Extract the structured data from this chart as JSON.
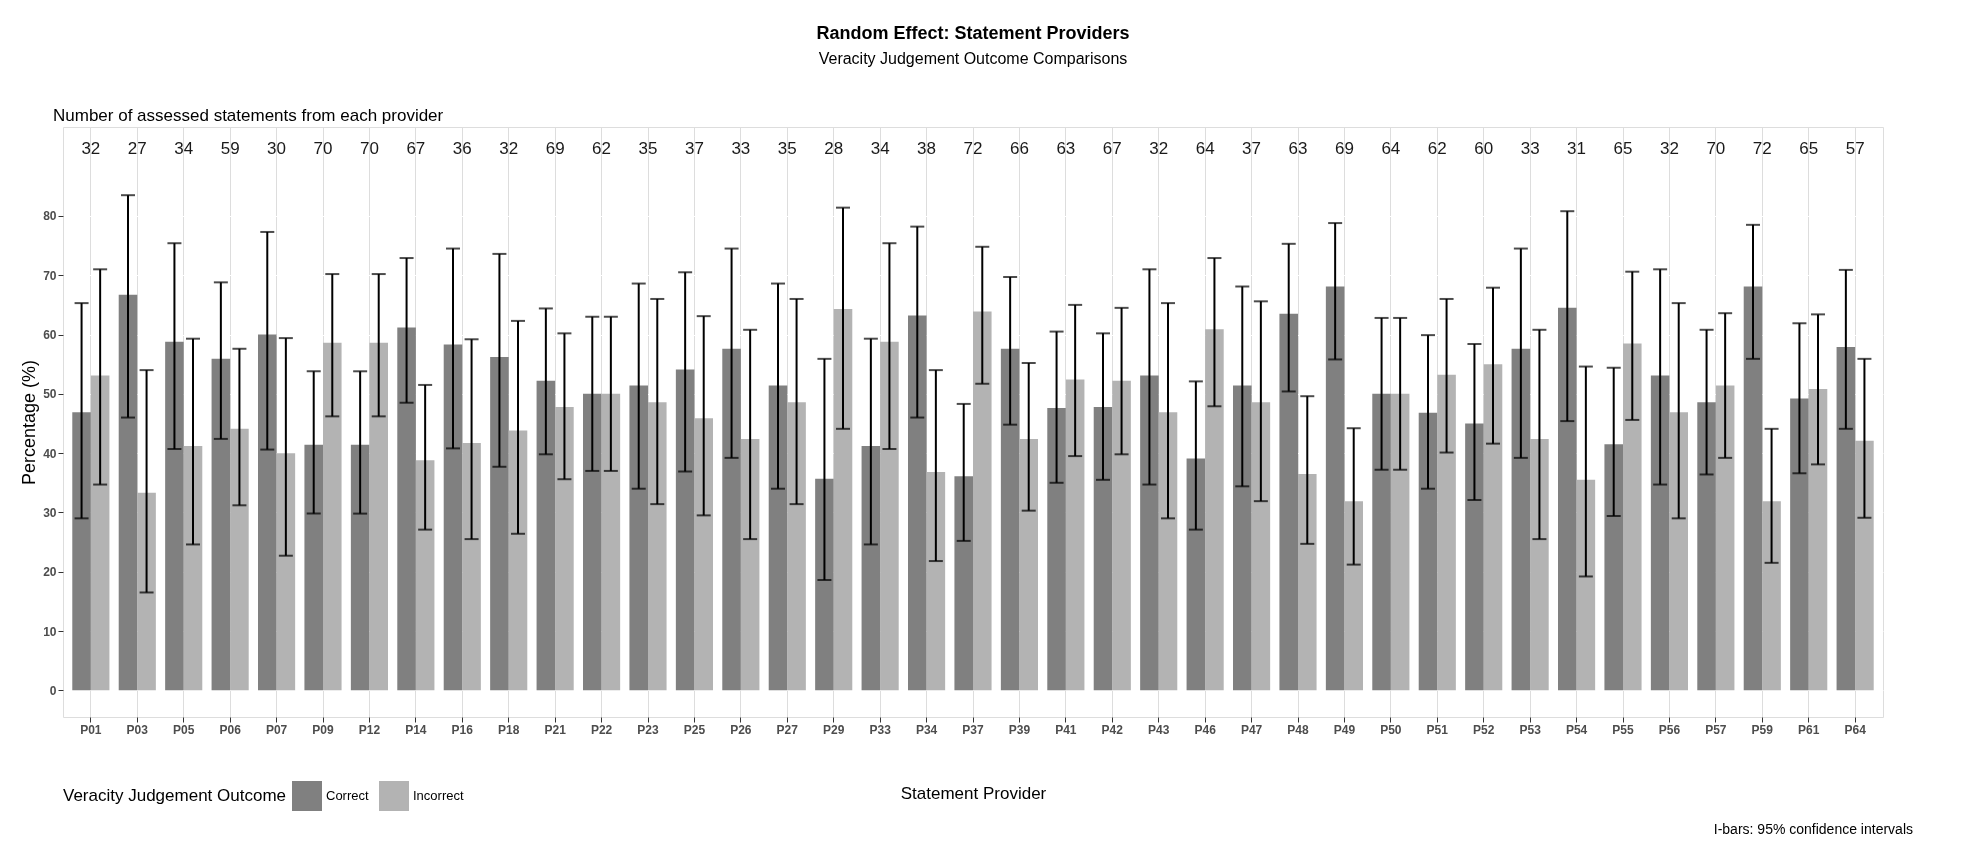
{
  "chart_data": {
    "type": "bar",
    "title": "Random Effect: Statement Providers",
    "subtitle": "Veracity Judgement Outcome Comparisons",
    "xlabel": "Statement Provider",
    "ylabel": "Percentage (%)",
    "legend_title": "Veracity Judgement Outcome",
    "legend": "bottom left",
    "grid": true,
    "categories": [
      "P01",
      "P03",
      "P05",
      "P06",
      "P07",
      "P09",
      "P12",
      "P14",
      "P16",
      "P18",
      "P21",
      "P22",
      "P23",
      "P25",
      "P26",
      "P27",
      "P29",
      "P33",
      "P34",
      "P37",
      "P39",
      "P41",
      "P42",
      "P43",
      "P46",
      "P47",
      "P48",
      "P49",
      "P50",
      "P51",
      "P52",
      "P53",
      "P54",
      "P55",
      "P56",
      "P57",
      "P59",
      "P61",
      "P64"
    ],
    "ylim": [
      -4.5,
      95
    ],
    "yticks": [
      0,
      10,
      20,
      30,
      40,
      50,
      60,
      70,
      80
    ],
    "series": [
      {
        "name": "Correct",
        "color": "#808080",
        "values": [
          46.9,
          66.7,
          58.8,
          55.9,
          60,
          41.4,
          41.4,
          61.2,
          58.3,
          56.2,
          52.2,
          50,
          51.4,
          54.1,
          57.6,
          51.4,
          35.7,
          41.2,
          63.2,
          36.1,
          57.6,
          47.6,
          47.8,
          53.1,
          39.1,
          51.4,
          63.5,
          68.1,
          50,
          46.8,
          45,
          57.6,
          64.5,
          41.5,
          53.1,
          48.6,
          68.1,
          49.2,
          57.9
        ],
        "errors": [
          [
            29,
            65.3
          ],
          [
            46,
            83.5
          ],
          [
            40.7,
            75.4
          ],
          [
            42.4,
            68.8
          ],
          [
            40.6,
            77.3
          ],
          [
            29.8,
            53.8
          ],
          [
            29.8,
            53.8
          ],
          [
            48.5,
            72.9
          ],
          [
            40.8,
            74.5
          ],
          [
            37.7,
            73.6
          ],
          [
            39.8,
            64.4
          ],
          [
            37,
            63
          ],
          [
            34,
            68.6
          ],
          [
            36.9,
            70.5
          ],
          [
            39.2,
            74.5
          ],
          [
            34,
            68.6
          ],
          [
            18.6,
            55.9
          ],
          [
            24.6,
            59.3
          ],
          [
            46,
            78.2
          ],
          [
            25.2,
            48.3
          ],
          [
            44.8,
            69.7
          ],
          [
            35,
            60.5
          ],
          [
            35.5,
            60.2
          ],
          [
            34.7,
            71
          ],
          [
            27.1,
            52.1
          ],
          [
            34.4,
            68.1
          ],
          [
            50.4,
            75.3
          ],
          [
            55.8,
            78.8
          ],
          [
            37.2,
            62.8
          ],
          [
            34,
            59.9
          ],
          [
            32.1,
            58.4
          ],
          [
            39.2,
            74.5
          ],
          [
            45.4,
            80.8
          ],
          [
            29.4,
            54.4
          ],
          [
            34.7,
            71
          ],
          [
            36.4,
            60.8
          ],
          [
            55.9,
            78.5
          ],
          [
            36.6,
            61.9
          ],
          [
            44.1,
            70.9
          ]
        ]
      },
      {
        "name": "Incorrect",
        "color": "#b3b3b3",
        "values": [
          53.1,
          33.3,
          41.2,
          44.1,
          40,
          58.6,
          58.6,
          38.8,
          41.7,
          43.8,
          47.8,
          50,
          48.6,
          45.9,
          42.4,
          48.6,
          64.3,
          58.8,
          36.8,
          63.9,
          42.4,
          52.4,
          52.2,
          46.9,
          60.9,
          48.6,
          36.5,
          31.9,
          50,
          53.2,
          55,
          42.4,
          35.5,
          58.5,
          46.9,
          51.4,
          31.9,
          50.8,
          42.1
        ],
        "errors": [
          [
            34.7,
            71
          ],
          [
            16.5,
            54
          ],
          [
            24.6,
            59.3
          ],
          [
            31.2,
            57.6
          ],
          [
            22.7,
            59.4
          ],
          [
            46.2,
            70.2
          ],
          [
            46.2,
            70.2
          ],
          [
            27.1,
            51.5
          ],
          [
            25.5,
            59.2
          ],
          [
            26.4,
            62.3
          ],
          [
            35.6,
            60.2
          ],
          [
            37,
            63
          ],
          [
            31.4,
            66
          ],
          [
            29.5,
            63.1
          ],
          [
            25.5,
            60.8
          ],
          [
            31.4,
            66
          ],
          [
            44.1,
            81.4
          ],
          [
            40.7,
            75.4
          ],
          [
            21.8,
            54
          ],
          [
            51.7,
            74.8
          ],
          [
            30.3,
            55.2
          ],
          [
            39.5,
            65
          ],
          [
            39.8,
            64.5
          ],
          [
            29,
            65.3
          ],
          [
            47.9,
            72.9
          ],
          [
            31.9,
            65.6
          ],
          [
            24.7,
            49.6
          ],
          [
            21.2,
            44.2
          ],
          [
            37.2,
            62.8
          ],
          [
            40.1,
            66
          ],
          [
            41.6,
            67.9
          ],
          [
            25.5,
            60.8
          ],
          [
            19.2,
            54.6
          ],
          [
            45.6,
            70.6
          ],
          [
            29,
            65.3
          ],
          [
            39.2,
            63.6
          ],
          [
            21.5,
            44.1
          ],
          [
            38.1,
            63.4
          ],
          [
            29.1,
            55.9
          ]
        ]
      }
    ],
    "annotations": [
      "Number of assessed statements from each provider",
      "32",
      "27",
      "34",
      "59",
      "30",
      "70",
      "70",
      "67",
      "36",
      "32",
      "69",
      "62",
      "35",
      "37",
      "33",
      "35",
      "28",
      "34",
      "38",
      "72",
      "66",
      "63",
      "67",
      "32",
      "64",
      "37",
      "63",
      "69",
      "64",
      "62",
      "60",
      "33",
      "31",
      "65",
      "32",
      "70",
      "72",
      "65",
      "57",
      "I-bars: 95% confidence intervals"
    ]
  }
}
